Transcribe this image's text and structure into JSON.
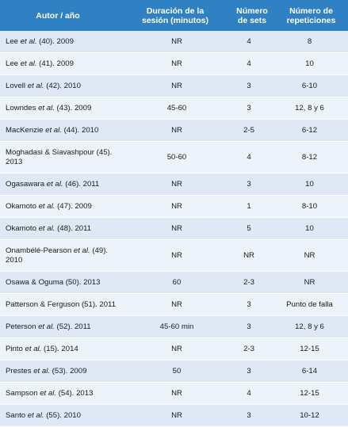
{
  "headers": {
    "author": "Autor / año",
    "duration": "Duración de la\nsesión (minutos)",
    "sets": "Número\nde sets",
    "reps": "Número de\nrepeticiones"
  },
  "rows": [
    {
      "pre": "Lee ",
      "et": "et al.",
      "post": " (40). 2009",
      "duration": "NR",
      "sets": "4",
      "reps": "8"
    },
    {
      "pre": "Lee ",
      "et": "et al.",
      "post": " (41). 2009",
      "duration": "NR",
      "sets": "4",
      "reps": "10"
    },
    {
      "pre": "Lovell ",
      "et": "et al.",
      "post": " (42). 2010",
      "duration": "NR",
      "sets": "3",
      "reps": "6-10"
    },
    {
      "pre": "Lowndes ",
      "et": "et al.",
      "post": " (43). 2009",
      "duration": "45-60",
      "sets": "3",
      "reps": "12, 8 y 6"
    },
    {
      "pre": "MacKenzie ",
      "et": "et al.",
      "post": " (44). 2010",
      "duration": "NR",
      "sets": "2-5",
      "reps": "6-12"
    },
    {
      "pre": "Moghadasi & Siavashpour (45).\n2013",
      "et": "",
      "post": "",
      "duration": "50-60",
      "sets": "4",
      "reps": "8-12"
    },
    {
      "pre": "Ogasawara ",
      "et": "et al.",
      "post": " (46). 2011",
      "duration": "NR",
      "sets": "3",
      "reps": "10"
    },
    {
      "pre": "Okamoto ",
      "et": "et al.",
      "post": " (47). 2009",
      "duration": "NR",
      "sets": "1",
      "reps": "8-10"
    },
    {
      "pre": "Okamoto ",
      "et": "et al.",
      "post": " (48). 2011",
      "duration": "NR",
      "sets": "5",
      "reps": "10"
    },
    {
      "pre": "Onambélé-Pearson ",
      "et": "et al.",
      "post": " (49).\n2010",
      "duration": "NR",
      "sets": "NR",
      "reps": "NR"
    },
    {
      "pre": "Osawa & Oguma (50). 2013",
      "et": "",
      "post": "",
      "duration": "60",
      "sets": "2-3",
      "reps": "NR"
    },
    {
      "pre": "Patterson & Ferguson (51). 2011",
      "et": "",
      "post": "",
      "duration": "NR",
      "sets": "3",
      "reps": "Punto de falla"
    },
    {
      "pre": "Peterson ",
      "et": "et al.",
      "post": " (52). 2011",
      "duration": "45-60 min",
      "sets": "3",
      "reps": "12, 8 y 6"
    },
    {
      "pre": "Pinto ",
      "et": "et al.",
      "post": " (15). 2014",
      "duration": "NR",
      "sets": "2-3",
      "reps": "12-15"
    },
    {
      "pre": "Prestes ",
      "et": "et al.",
      "post": " (53). 2009",
      "duration": "50",
      "sets": "3",
      "reps": "6-14"
    },
    {
      "pre": "Sampson ",
      "et": "et al.",
      "post": " (54). 2013",
      "duration": "NR",
      "sets": "4",
      "reps": "12-15"
    },
    {
      "pre": "Santo ",
      "et": "et al.",
      "post": " (55). 2010",
      "duration": "NR",
      "sets": "3",
      "reps": "10-12"
    }
  ],
  "colors": {
    "header_bg": "#2f81c4",
    "row_odd": "#dfe9f6",
    "row_even": "#edf3fa"
  }
}
